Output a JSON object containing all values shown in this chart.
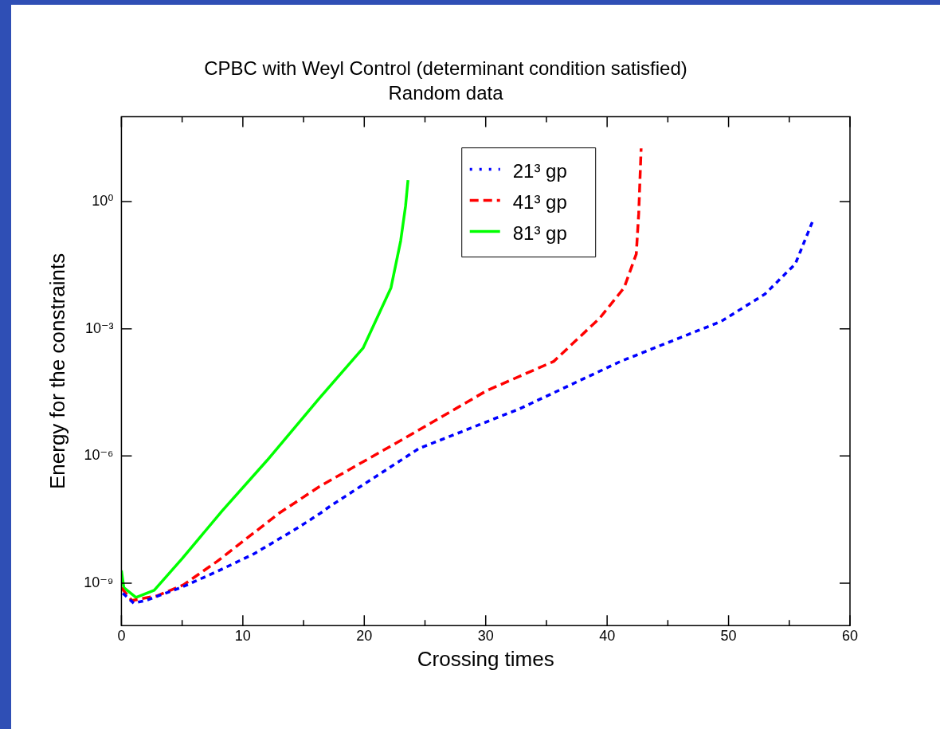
{
  "chart_data": {
    "type": "line",
    "title": "CPBC with Weyl Control (determinant condition satisfied)",
    "subtitle": "Random data",
    "xlabel": "Crossing times",
    "ylabel": "Energy for the constraints",
    "log": "y",
    "grid": false,
    "legend": "top",
    "marker": "none",
    "xlim": [
      0,
      60
    ],
    "xticks": [
      0,
      {
        "value": 5,
        "label": null
      },
      10,
      {
        "value": 15,
        "label": null
      },
      20,
      {
        "value": 25,
        "label": null
      },
      30,
      {
        "value": 35,
        "label": null
      },
      40,
      {
        "value": 45,
        "label": null
      },
      50,
      {
        "value": 55,
        "label": null
      },
      60
    ],
    "ylim": [
      1e-10,
      100
    ],
    "yticks": [
      {
        "value": 1e-09,
        "label": "10⁻⁹"
      },
      {
        "value": 1e-06,
        "label": "10⁻⁶"
      },
      {
        "value": 0.001,
        "label": "10⁻³"
      },
      {
        "value": 1,
        "label": "10⁰"
      }
    ],
    "series": [
      {
        "name": "21³ gp",
        "color": "#0000ff",
        "line_style": "dotted",
        "x": [
          0.2,
          1,
          2,
          5,
          7.9,
          10.9,
          14.5,
          16.4,
          17.1,
          24.5,
          32.8,
          41.1,
          49.4,
          53,
          55.5,
          57
        ],
        "values": [
          5.5e-10,
          3.4e-10,
          3.9e-10,
          8.1e-10,
          1.9e-09,
          4.9e-09,
          2e-08,
          4.5e-08,
          6.3e-08,
          1.5e-06,
          1.3e-05,
          0.00017,
          0.0015,
          0.0066,
          0.034,
          0.39
        ]
      },
      {
        "name": "41³ gp",
        "color": "#ff0000",
        "line_style": "dashed",
        "x": [
          0,
          0.85,
          2.9,
          5.1,
          7.9,
          13,
          16.3,
          23.4,
          30.1,
          35.6,
          39.4,
          41.4,
          42.4,
          42.6,
          42.8
        ],
        "values": [
          7.8e-10,
          3.9e-10,
          5e-10,
          9.1e-10,
          3.3e-09,
          4.5e-08,
          1.9e-07,
          2.7e-06,
          3.5e-05,
          0.00017,
          0.0018,
          0.0093,
          0.058,
          0.52,
          18
        ]
      },
      {
        "name": "81³ gp",
        "color": "#00ff00",
        "line_style": "solid",
        "x": [
          0,
          0.2,
          1.2,
          2.7,
          5,
          8.3,
          12,
          16.3,
          19.9,
          22.2,
          23,
          23.4,
          23.6
        ],
        "values": [
          2e-09,
          7.8e-10,
          4.6e-10,
          6.8e-10,
          3.8e-09,
          5.1e-08,
          7.9e-07,
          2.3e-05,
          0.00035,
          0.0093,
          0.12,
          0.79,
          3.2
        ]
      }
    ]
  }
}
